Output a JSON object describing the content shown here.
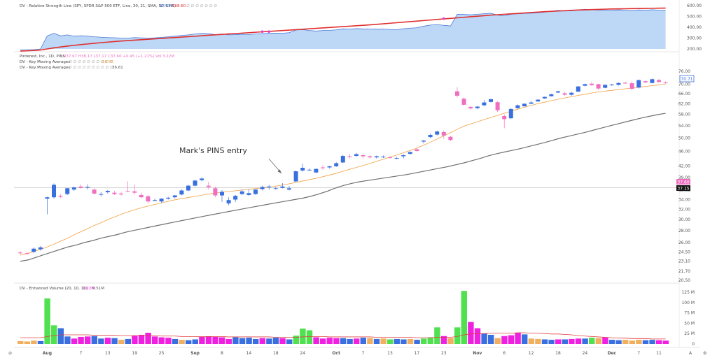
{
  "colors": {
    "up": "#3a6fe0",
    "down": "#f06ec0",
    "ma_fast": "#f0a040",
    "ma_slow": "#707070",
    "rs_fill": "#bcd8f6",
    "rs_line": "#4a78d8",
    "rs_ma": "#e03030",
    "vol_green": "#50e050",
    "vol_orange": "#f0b060",
    "vol_blue": "#3a6fe0",
    "vol_magenta": "#f020e0",
    "vol_avg": "#e04040"
  },
  "top_panel": {
    "legend": "DV - Relative Strength Line (SPY, SPDR S&P 500 ETF, Line, 30, 21, SMA, 50, SMA)",
    "val1": "174.54",
    "val2": "168.60",
    "icons": "∅ ∅ ∅ ∅ ∅ ∅ ∅",
    "axis_labels": [
      "600.00",
      "500.00",
      "400.00",
      "300.00",
      "200.00"
    ]
  },
  "main_panel": {
    "legend_symbol": "Pinterest, Inc., 1D, PINS",
    "legend_ohlc": "O37.67  H38.17  L37.17  C37.60  +0.45 (+1.21%)  Vol 3.22M",
    "ma1": {
      "label": "DV - Key Moving Averages",
      "icons": "∅ ∅ ∅ ∅ ∅ ∅ ∅ ∅ ∅ ∅",
      "value": "56.70"
    },
    "ma2": {
      "label": "DV - Key Moving Averages",
      "icons": "∅ ∅ ∅ ∅ ∅ ∅ ∅ ∅ ∅ ∅",
      "value": "36.61"
    },
    "axis_labels": [
      "76.00",
      "70.00",
      "66.00",
      "62.00",
      "58.00",
      "54.00",
      "50.00",
      "46.00",
      "42.00",
      "39.00",
      "36.00",
      "34.00",
      "32.00",
      "30.00",
      "28.00",
      "26.00",
      "24.50",
      "23.10",
      "21.70",
      "20.50"
    ],
    "price_tag": "70.71",
    "tag_pink": "37.60",
    "tag_black": "37.15"
  },
  "annotation": {
    "text": "Mark's PINS entry"
  },
  "volume_panel": {
    "legend": "DV - Enhanced Volume (20, 10, 10)",
    "val1": "3.22M",
    "val2": "9.51M",
    "axis_labels": [
      "125 M",
      "100 M",
      "75 M",
      "50 M",
      "25 M",
      "0"
    ]
  },
  "x_axis": {
    "labels": [
      "Aug",
      "7",
      "13",
      "19",
      "25",
      "Sep",
      "8",
      "14",
      "18",
      "24",
      "Oct",
      "7",
      "13",
      "17",
      "23",
      "Nov",
      "6",
      "12",
      "18",
      "24",
      "Dec",
      "7",
      "11"
    ]
  },
  "chart_data": [
    {
      "type": "candlestick",
      "title": "Pinterest, Inc., 1D, PINS",
      "ylim": [
        20.5,
        78
      ],
      "y_scale": "log",
      "candles": [
        [
          24.4,
          24.6,
          24.1,
          24.3
        ],
        [
          24.3,
          24.5,
          24.0,
          24.2
        ],
        [
          24.5,
          25.2,
          24.3,
          25.0
        ],
        [
          24.9,
          25.4,
          24.7,
          25.2
        ],
        [
          34.2,
          34.6,
          31.0,
          34.5
        ],
        [
          34.5,
          37.6,
          34.2,
          37.3
        ],
        [
          34.8,
          35.2,
          34.3,
          34.6
        ],
        [
          35.2,
          36.6,
          35.0,
          36.5
        ],
        [
          36.2,
          36.9,
          35.9,
          36.7
        ],
        [
          36.9,
          37.4,
          36.4,
          36.6
        ],
        [
          36.7,
          37.4,
          36.2,
          36.8
        ],
        [
          36.2,
          36.5,
          35.1,
          35.3
        ],
        [
          35.2,
          35.6,
          34.7,
          35.2
        ],
        [
          35.6,
          36.1,
          35.3,
          35.9
        ],
        [
          35.5,
          35.9,
          35.0,
          35.2
        ],
        [
          35.3,
          35.7,
          34.9,
          35.1
        ],
        [
          35.9,
          38.1,
          35.7,
          35.8
        ],
        [
          35.8,
          37.4,
          35.1,
          35.5
        ],
        [
          35.0,
          35.5,
          34.3,
          34.5
        ],
        [
          34.7,
          35.0,
          33.2,
          33.6
        ],
        [
          33.9,
          34.2,
          33.6,
          33.9
        ],
        [
          33.6,
          34.3,
          33.3,
          34.2
        ],
        [
          34.2,
          34.6,
          34.0,
          34.4
        ],
        [
          34.5,
          35.0,
          34.3,
          34.9
        ],
        [
          35.1,
          36.2,
          34.9,
          36.0
        ],
        [
          36.0,
          37.3,
          35.8,
          37.1
        ],
        [
          37.1,
          38.5,
          36.9,
          38.3
        ],
        [
          38.4,
          39.1,
          38.1,
          38.8
        ],
        [
          37.1,
          38.0,
          36.2,
          36.8
        ],
        [
          36.5,
          36.9,
          34.5,
          34.9
        ],
        [
          34.9,
          36.1,
          33.5,
          35.7
        ],
        [
          33.2,
          34.5,
          32.8,
          33.9
        ],
        [
          34.0,
          35.0,
          33.5,
          34.8
        ],
        [
          35.2,
          36.2,
          35.0,
          35.8
        ],
        [
          35.0,
          36.3,
          34.8,
          35.4
        ],
        [
          35.2,
          36.3,
          35.0,
          36.2
        ],
        [
          36.3,
          37.1,
          36.0,
          36.8
        ],
        [
          36.7,
          37.3,
          36.2,
          36.9
        ],
        [
          36.4,
          36.8,
          36.2,
          36.5
        ],
        [
          36.6,
          37.7,
          36.5,
          36.9
        ],
        [
          36.2,
          37.0,
          36.0,
          36.5
        ],
        [
          38.1,
          40.8,
          37.9,
          40.6
        ],
        [
          40.8,
          42.6,
          40.5,
          41.5
        ],
        [
          41.0,
          41.4,
          40.7,
          41.0
        ],
        [
          40.3,
          41.4,
          40.1,
          41.2
        ],
        [
          41.6,
          42.2,
          41.0,
          41.5
        ],
        [
          41.6,
          42.0,
          41.3,
          41.9
        ],
        [
          41.9,
          43.0,
          41.7,
          42.7
        ],
        [
          42.9,
          45.0,
          42.8,
          44.7
        ],
        [
          44.6,
          45.3,
          44.0,
          44.5
        ],
        [
          44.7,
          45.5,
          44.5,
          45.2
        ],
        [
          44.9,
          45.2,
          44.0,
          44.6
        ],
        [
          44.6,
          45.0,
          44.0,
          44.3
        ],
        [
          44.3,
          44.8,
          44.0,
          44.6
        ],
        [
          44.4,
          44.8,
          44.1,
          44.5
        ],
        [
          44.3,
          44.6,
          44.0,
          44.2
        ],
        [
          44.0,
          44.4,
          43.8,
          44.1
        ],
        [
          44.6,
          45.2,
          44.0,
          44.9
        ],
        [
          45.3,
          46.0,
          45.0,
          45.8
        ],
        [
          46.6,
          46.9,
          45.9,
          46.1
        ],
        [
          48.9,
          49.5,
          48.3,
          49.2
        ],
        [
          50.3,
          51.4,
          49.9,
          51.0
        ],
        [
          51.1,
          52.4,
          50.8,
          52.1
        ],
        [
          51.9,
          52.4,
          49.8,
          50.8
        ],
        [
          50.4,
          50.7,
          49.1,
          49.4
        ],
        [
          67.0,
          68.8,
          64.5,
          65.2
        ],
        [
          64.0,
          64.5,
          61.2,
          61.6
        ],
        [
          60.8,
          61.1,
          59.6,
          60.2
        ],
        [
          60.3,
          61.1,
          59.9,
          60.9
        ],
        [
          61.4,
          63.5,
          61.0,
          62.5
        ],
        [
          62.7,
          63.9,
          62.5,
          63.8
        ],
        [
          62.6,
          63.0,
          58.9,
          59.5
        ],
        [
          57.4,
          58.0,
          53.2,
          56.3
        ],
        [
          56.6,
          60.3,
          56.3,
          60.0
        ],
        [
          60.3,
          61.7,
          60.1,
          61.4
        ],
        [
          61.0,
          62.2,
          60.9,
          62.0
        ],
        [
          62.0,
          63.1,
          61.8,
          62.5
        ],
        [
          62.9,
          63.7,
          62.7,
          63.6
        ],
        [
          64.1,
          64.9,
          63.9,
          64.7
        ],
        [
          65.0,
          66.0,
          64.9,
          65.8
        ],
        [
          66.5,
          67.2,
          66.3,
          67.0
        ],
        [
          66.2,
          66.8,
          65.2,
          65.6
        ],
        [
          65.6,
          66.9,
          65.1,
          66.4
        ],
        [
          66.9,
          69.3,
          66.7,
          69.1
        ],
        [
          69.4,
          70.4,
          69.1,
          70.1
        ],
        [
          70.3,
          71.1,
          69.3,
          69.7
        ],
        [
          70.1,
          70.3,
          67.7,
          68.2
        ],
        [
          68.5,
          69.9,
          68.3,
          69.8
        ],
        [
          69.6,
          70.2,
          69.4,
          69.9
        ],
        [
          69.8,
          70.9,
          69.5,
          70.6
        ],
        [
          70.7,
          71.2,
          70.2,
          70.4
        ],
        [
          70.5,
          71.4,
          67.4,
          68.1
        ],
        [
          68.6,
          72.2,
          68.2,
          71.9
        ],
        [
          71.4,
          71.8,
          70.5,
          70.9
        ],
        [
          70.6,
          72.6,
          70.4,
          72.3
        ],
        [
          71.9,
          72.4,
          70.7,
          71.1
        ],
        [
          70.8,
          71.3,
          70.3,
          70.7
        ]
      ],
      "ma_fast": [
        24.0,
        24.3,
        24.7,
        25.1,
        25.6,
        26.2,
        26.8,
        27.5,
        28.1,
        28.8,
        29.4,
        30.1,
        30.7,
        31.3,
        31.8,
        32.3,
        32.7,
        33.1,
        33.5,
        33.9,
        34.2,
        34.5,
        34.8,
        35.1,
        35.4,
        35.6,
        35.8,
        36.0,
        36.2,
        36.4,
        36.6,
        36.8,
        37.1,
        37.4,
        37.8,
        38.2,
        38.6,
        39.0,
        39.5,
        40.0,
        40.6,
        41.2,
        41.8,
        42.4,
        43.1,
        43.8,
        44.5,
        45.2,
        46.0,
        46.8,
        47.8,
        48.9,
        50.1,
        51.3,
        52.6,
        53.9,
        54.8,
        55.7,
        56.6,
        57.5,
        58.4,
        59.3,
        60.2,
        61.1,
        61.9,
        62.6,
        63.3,
        64.0,
        64.6,
        65.2,
        65.8,
        66.4,
        66.9,
        67.3,
        67.7,
        68.1,
        68.5,
        68.9,
        69.3,
        69.7,
        70.1
      ],
      "ma_slow": [
        23.1,
        23.3,
        23.7,
        24.1,
        24.5,
        24.9,
        25.3,
        25.6,
        26.0,
        26.3,
        26.7,
        27.0,
        27.3,
        27.7,
        28.0,
        28.3,
        28.6,
        28.9,
        29.2,
        29.5,
        29.8,
        30.1,
        30.4,
        30.7,
        31.0,
        31.3,
        31.6,
        31.9,
        32.2,
        32.5,
        32.8,
        33.1,
        33.4,
        33.7,
        34.0,
        34.3,
        34.7,
        35.2,
        35.8,
        36.5,
        37.1,
        37.6,
        38.0,
        38.3,
        38.6,
        38.9,
        39.2,
        39.5,
        39.8,
        40.2,
        40.6,
        41.0,
        41.4,
        41.8,
        42.3,
        42.8,
        43.4,
        44.0,
        44.7,
        45.3,
        45.8,
        46.3,
        46.8,
        47.4,
        48.0,
        48.6,
        49.3,
        50.0,
        50.6,
        51.2,
        51.8,
        52.5,
        53.2,
        53.9,
        54.6,
        55.3,
        56.0,
        56.7,
        57.3,
        57.9,
        58.4
      ],
      "level": 36.6
    },
    {
      "type": "area",
      "title": "DV - Relative Strength Line (SPY, SPDR S&P 500 ETF, Line, 30, 21, SMA, 50, SMA)",
      "ylim": [
        200,
        600
      ],
      "values": [
        180,
        185,
        190,
        200,
        320,
        345,
        320,
        330,
        318,
        322,
        318,
        312,
        308,
        305,
        303,
        300,
        300,
        305,
        302,
        300,
        302,
        306,
        312,
        318,
        325,
        330,
        338,
        345,
        340,
        332,
        338,
        330,
        332,
        336,
        334,
        338,
        342,
        345,
        346,
        345,
        350,
        375,
        378,
        370,
        365,
        370,
        372,
        376,
        385,
        383,
        388,
        385,
        384,
        382,
        383,
        380,
        378,
        386,
        392,
        395,
        410,
        420,
        425,
        418,
        412,
        520,
        518,
        515,
        520,
        525,
        530,
        512,
        505,
        520,
        524,
        528,
        530,
        534,
        540,
        548,
        556,
        550,
        552,
        560,
        566,
        562,
        558,
        556,
        557,
        560,
        558,
        552,
        560,
        556,
        562,
        558,
        556
      ],
      "ma_values": [
        180,
        183,
        186,
        190,
        200,
        210,
        218,
        226,
        233,
        240,
        246,
        252,
        258,
        263,
        268,
        273,
        277,
        281,
        285,
        289,
        293,
        297,
        301,
        305,
        309,
        313,
        317,
        322,
        326,
        330,
        334,
        338,
        342,
        346,
        350,
        354,
        358,
        362,
        366,
        370,
        374,
        378,
        382,
        386,
        390,
        394,
        398,
        402,
        406,
        410,
        414,
        418,
        422,
        427,
        432,
        437,
        442,
        447,
        452,
        457,
        462,
        467,
        472,
        477,
        482,
        487,
        492,
        497,
        502,
        507,
        512,
        516,
        520,
        524,
        528,
        532,
        536,
        540,
        544,
        547,
        550,
        553,
        556,
        559,
        561,
        563,
        565,
        567,
        569,
        570,
        571,
        572,
        573,
        574,
        575,
        576,
        577
      ],
      "markers": [
        360,
        360,
        480
      ]
    },
    {
      "type": "bar",
      "title": "DV - Enhanced Volume (20, 10, 10)",
      "ylim": [
        0,
        125
      ],
      "values": [
        7,
        6,
        8,
        7,
        110,
        45,
        38,
        18,
        13,
        17,
        18,
        19,
        13,
        15,
        14,
        10,
        12,
        20,
        22,
        27,
        18,
        16,
        15,
        12,
        10,
        9,
        11,
        17,
        18,
        17,
        16,
        12,
        16,
        14,
        15,
        12,
        14,
        13,
        15,
        14,
        11,
        20,
        37,
        33,
        16,
        13,
        15,
        14,
        14,
        12,
        13,
        15,
        14,
        12,
        13,
        11,
        12,
        11,
        12,
        10,
        13,
        16,
        40,
        19,
        14,
        40,
        128,
        53,
        38,
        25,
        22,
        14,
        19,
        21,
        27,
        23,
        13,
        12,
        11,
        10,
        11,
        11,
        12,
        13,
        13,
        15,
        14,
        16,
        10,
        9,
        10,
        8,
        10,
        9,
        10,
        9,
        8
      ],
      "color_codes": [
        "o",
        "o",
        "o",
        "b",
        "g",
        "g",
        "b",
        "b",
        "m",
        "m",
        "m",
        "b",
        "b",
        "m",
        "b",
        "o",
        "b",
        "m",
        "m",
        "m",
        "m",
        "m",
        "m",
        "b",
        "o",
        "b",
        "b",
        "m",
        "m",
        "m",
        "m",
        "m",
        "b",
        "b",
        "b",
        "b",
        "m",
        "b",
        "b",
        "m",
        "b",
        "g",
        "g",
        "g",
        "m",
        "m",
        "m",
        "m",
        "b",
        "b",
        "m",
        "b",
        "o",
        "b",
        "o",
        "g",
        "b",
        "b",
        "o",
        "b",
        "g",
        "g",
        "g",
        "m",
        "o",
        "g",
        "g",
        "m",
        "m",
        "b",
        "b",
        "o",
        "m",
        "m",
        "m",
        "b",
        "o",
        "o",
        "b",
        "b",
        "m",
        "b",
        "m",
        "m",
        "b",
        "g",
        "o",
        "m",
        "b",
        "b",
        "o",
        "o",
        "o",
        "b",
        "b",
        "m",
        "m"
      ],
      "ma_values": [
        15,
        15,
        15,
        15,
        18,
        20,
        22,
        22,
        22,
        22,
        22,
        21,
        21,
        21,
        21,
        20,
        20,
        20,
        20,
        20,
        20,
        19,
        19,
        19,
        18,
        18,
        18,
        18,
        18,
        18,
        18,
        17,
        17,
        17,
        17,
        17,
        17,
        17,
        16,
        16,
        16,
        16,
        17,
        18,
        18,
        18,
        17,
        17,
        17,
        17,
        17,
        17,
        17,
        16,
        16,
        16,
        16,
        16,
        16,
        15,
        15,
        15,
        16,
        16,
        16,
        18,
        22,
        24,
        25,
        25,
        26,
        26,
        26,
        26,
        27,
        27,
        26,
        26,
        25,
        24,
        24,
        23,
        22,
        20,
        19,
        18,
        17,
        16,
        15,
        14,
        14,
        13,
        13,
        13,
        12,
        12,
        12
      ]
    }
  ]
}
